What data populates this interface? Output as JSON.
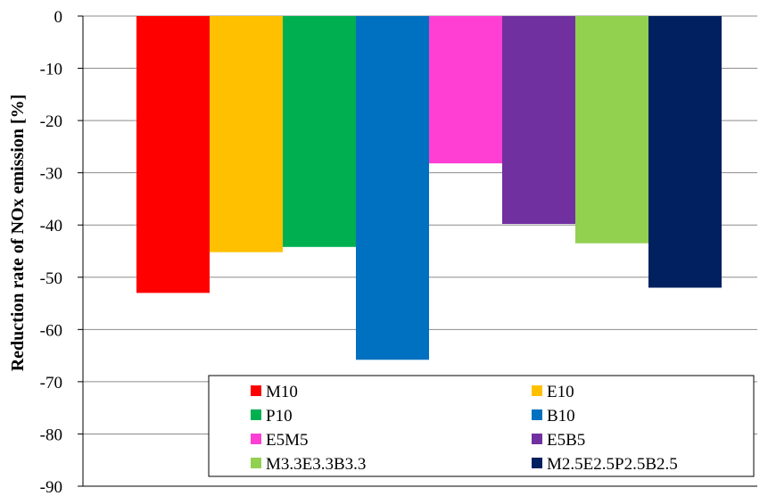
{
  "chart_data": {
    "type": "bar",
    "title": "",
    "xlabel": "",
    "ylabel": "Reduction rate of NOx emission [%]",
    "ylim": [
      -90,
      0
    ],
    "yticks": [
      0,
      -10,
      -20,
      -30,
      -40,
      -50,
      -60,
      -70,
      -80,
      -90
    ],
    "grid": true,
    "legend_position": "bottom-right",
    "series": [
      {
        "name": "M10",
        "value": -53,
        "color": "#ff0000"
      },
      {
        "name": "E10",
        "value": -45.2,
        "color": "#ffc000"
      },
      {
        "name": "P10",
        "value": -44.2,
        "color": "#00b050"
      },
      {
        "name": "B10",
        "value": -65.8,
        "color": "#0070c0"
      },
      {
        "name": "E5M5",
        "value": -28.2,
        "color": "#ff3fd4"
      },
      {
        "name": "E5B5",
        "value": -39.8,
        "color": "#7030a0"
      },
      {
        "name": "M3.3E3.3B3.3",
        "value": -43.5,
        "color": "#92d050"
      },
      {
        "name": "M2.5E2.5P2.5B2.5",
        "value": -52,
        "color": "#002060"
      }
    ]
  }
}
